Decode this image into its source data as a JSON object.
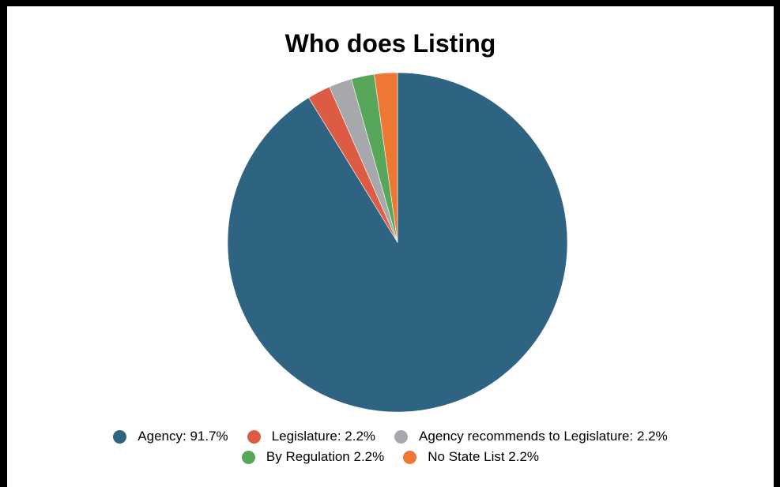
{
  "chart_data": {
    "type": "pie",
    "title": "Who does Listing",
    "slices": [
      {
        "label": "Agency: 91.7%",
        "value": 91.7,
        "color": "#2e6482"
      },
      {
        "label": "Legislature: 2.2%",
        "value": 2.2,
        "color": "#dd5a43"
      },
      {
        "label": "Agency recommends to Legislature: 2.2%",
        "value": 2.2,
        "color": "#a7a8ac"
      },
      {
        "label": "By Regulation 2.2%",
        "value": 2.2,
        "color": "#58a65a"
      },
      {
        "label": "No State List 2.2%",
        "value": 2.2,
        "color": "#ee7733"
      }
    ],
    "legend": {
      "position": "bottom",
      "rows": [
        [
          0,
          1,
          2
        ],
        [
          3,
          4
        ]
      ]
    }
  }
}
